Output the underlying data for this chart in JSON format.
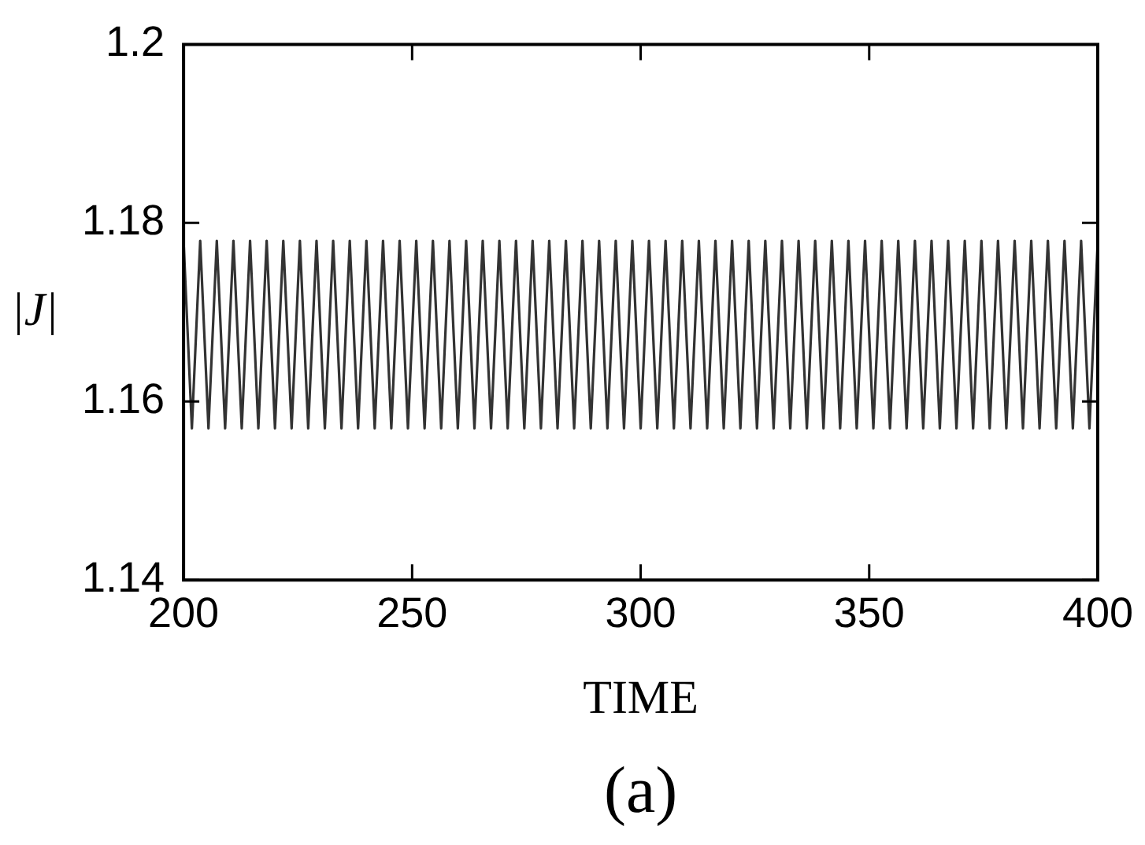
{
  "chart_data": {
    "type": "line",
    "xlabel": "TIME",
    "ylabel": "|J|",
    "annotations": [
      "(a)"
    ],
    "xlim": [
      200,
      400
    ],
    "xticks": [
      200,
      250,
      300,
      350,
      400
    ],
    "ylim": [
      1.14,
      1.2
    ],
    "yticks": [
      1.14,
      1.16,
      1.18,
      1.2
    ],
    "grid": false,
    "legend": false,
    "marker": "none",
    "line_style": "solid",
    "series": [
      {
        "color": "#333333",
        "x": [
          200,
          201.82,
          203.64,
          205.45,
          207.27,
          209.09,
          210.91,
          212.73,
          214.55,
          216.36,
          218.18,
          220,
          221.82,
          223.64,
          225.45,
          227.27,
          229.09,
          230.91,
          232.73,
          234.55,
          236.36,
          238.18,
          240,
          241.82,
          243.64,
          245.45,
          247.27,
          249.09,
          250.91,
          252.73,
          254.55,
          256.36,
          258.18,
          260,
          261.82,
          263.64,
          265.45,
          267.27,
          269.09,
          270.91,
          272.73,
          274.55,
          276.36,
          278.18,
          280,
          281.82,
          283.64,
          285.45,
          287.27,
          289.09,
          290.91,
          292.73,
          294.55,
          296.36,
          298.18,
          300,
          301.82,
          303.64,
          305.45,
          307.27,
          309.09,
          310.91,
          312.73,
          314.55,
          316.36,
          318.18,
          320,
          321.82,
          323.64,
          325.45,
          327.27,
          329.09,
          330.91,
          332.73,
          334.55,
          336.36,
          338.18,
          340,
          341.82,
          343.64,
          345.45,
          347.27,
          349.09,
          350.91,
          352.73,
          354.55,
          356.36,
          358.18,
          360,
          361.82,
          363.64,
          365.45,
          367.27,
          369.09,
          370.91,
          372.73,
          374.55,
          376.36,
          378.18,
          380,
          381.82,
          383.64,
          385.45,
          387.27,
          389.09,
          390.91,
          392.73,
          394.55,
          396.36,
          398.18,
          400
        ],
        "values": [
          1.178,
          1.157,
          1.178,
          1.157,
          1.178,
          1.157,
          1.178,
          1.157,
          1.178,
          1.157,
          1.178,
          1.157,
          1.178,
          1.157,
          1.178,
          1.157,
          1.178,
          1.157,
          1.178,
          1.157,
          1.178,
          1.157,
          1.178,
          1.157,
          1.178,
          1.157,
          1.178,
          1.157,
          1.178,
          1.157,
          1.178,
          1.157,
          1.178,
          1.157,
          1.178,
          1.157,
          1.178,
          1.157,
          1.178,
          1.157,
          1.178,
          1.157,
          1.178,
          1.157,
          1.178,
          1.157,
          1.178,
          1.157,
          1.178,
          1.157,
          1.178,
          1.157,
          1.178,
          1.157,
          1.178,
          1.157,
          1.178,
          1.157,
          1.178,
          1.157,
          1.178,
          1.157,
          1.178,
          1.157,
          1.178,
          1.157,
          1.178,
          1.157,
          1.178,
          1.157,
          1.178,
          1.157,
          1.178,
          1.157,
          1.178,
          1.157,
          1.178,
          1.157,
          1.178,
          1.157,
          1.178,
          1.157,
          1.178,
          1.157,
          1.178,
          1.157,
          1.178,
          1.157,
          1.178,
          1.157,
          1.178,
          1.157,
          1.178,
          1.157,
          1.178,
          1.157,
          1.178,
          1.157,
          1.178,
          1.157,
          1.178,
          1.157,
          1.178,
          1.157,
          1.178,
          1.157,
          1.178,
          1.157,
          1.178,
          1.157,
          1.178
        ]
      }
    ]
  }
}
